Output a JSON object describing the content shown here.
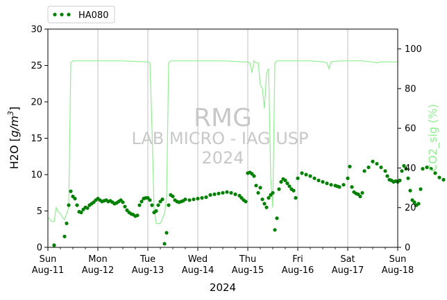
{
  "chart_data": {
    "type": "line",
    "title": "",
    "xlabel": "2024",
    "ylabel": "H2O [g/m³]",
    "ylabel_parts": [
      "H2O [",
      "g/m",
      "3",
      "]"
    ],
    "y2label": "CO2_sig (%)",
    "xlim": [
      "2024-08-11",
      "2024-08-18"
    ],
    "ylim": [
      0,
      30
    ],
    "y2lim": [
      0,
      110
    ],
    "yticks": [
      0,
      5,
      10,
      15,
      20,
      25,
      30
    ],
    "y2ticks": [
      0,
      20,
      40,
      60,
      80,
      100
    ],
    "xticks": [
      {
        "day": "Sun",
        "date": "Aug-11"
      },
      {
        "day": "Mon",
        "date": "Aug-12"
      },
      {
        "day": "Tue",
        "date": "Aug-13"
      },
      {
        "day": "Wed",
        "date": "Aug-14"
      },
      {
        "day": "Thu",
        "date": "Aug-15"
      },
      {
        "day": "Fri",
        "date": "Aug-16"
      },
      {
        "day": "Sat",
        "date": "Aug-17"
      },
      {
        "day": "Sun",
        "date": "Aug-18"
      }
    ],
    "grid": "vertical",
    "legend": {
      "placement": "top-left",
      "entries": [
        "HA080"
      ]
    },
    "watermark": [
      "RMG",
      "LAB MICRO - IAG USP",
      "2024"
    ],
    "colors": {
      "h2o": "#008000",
      "co2": "#90ee90",
      "grid": "#b0b0b0",
      "watermark": "#c8c8c8"
    },
    "series": [
      {
        "name": "HA080",
        "axis": "left",
        "style": "dots",
        "x": [
          "2024-08-11 03:00",
          "2024-08-11 08:00",
          "2024-08-11 09:00",
          "2024-08-11 10:00",
          "2024-08-11 11:00",
          "2024-08-11 12:00",
          "2024-08-11 13:00",
          "2024-08-11 14:00",
          "2024-08-11 15:00",
          "2024-08-11 16:00",
          "2024-08-11 17:00",
          "2024-08-11 18:00",
          "2024-08-11 19:00",
          "2024-08-11 20:00",
          "2024-08-11 21:00",
          "2024-08-11 22:00",
          "2024-08-11 23:00",
          "2024-08-12 00:00",
          "2024-08-12 01:00",
          "2024-08-12 02:00",
          "2024-08-12 03:00",
          "2024-08-12 04:00",
          "2024-08-12 05:00",
          "2024-08-12 06:00",
          "2024-08-12 07:00",
          "2024-08-12 08:00",
          "2024-08-12 09:00",
          "2024-08-12 10:00",
          "2024-08-12 11:00",
          "2024-08-12 12:00",
          "2024-08-12 13:00",
          "2024-08-12 14:00",
          "2024-08-12 15:00",
          "2024-08-12 16:00",
          "2024-08-12 17:00",
          "2024-08-12 18:00",
          "2024-08-12 19:00",
          "2024-08-12 20:00",
          "2024-08-12 21:00",
          "2024-08-12 22:00",
          "2024-08-12 23:00",
          "2024-08-13 00:00",
          "2024-08-13 01:00",
          "2024-08-13 02:00",
          "2024-08-13 03:00",
          "2024-08-13 04:00",
          "2024-08-13 05:00",
          "2024-08-13 06:00",
          "2024-08-13 07:00",
          "2024-08-13 08:00",
          "2024-08-13 09:00",
          "2024-08-13 10:00",
          "2024-08-13 11:00",
          "2024-08-13 12:00",
          "2024-08-13 13:00",
          "2024-08-13 14:00",
          "2024-08-13 15:00",
          "2024-08-13 16:00",
          "2024-08-13 17:00",
          "2024-08-13 18:00",
          "2024-08-13 20:00",
          "2024-08-13 22:00",
          "2024-08-14 00:00",
          "2024-08-14 02:00",
          "2024-08-14 04:00",
          "2024-08-14 06:00",
          "2024-08-14 08:00",
          "2024-08-14 10:00",
          "2024-08-14 12:00",
          "2024-08-14 14:00",
          "2024-08-14 16:00",
          "2024-08-14 18:00",
          "2024-08-14 20:00",
          "2024-08-14 21:00",
          "2024-08-14 22:00",
          "2024-08-14 23:00",
          "2024-08-15 00:00",
          "2024-08-15 01:00",
          "2024-08-15 02:00",
          "2024-08-15 03:00",
          "2024-08-15 04:00",
          "2024-08-15 05:00",
          "2024-08-15 06:00",
          "2024-08-15 07:00",
          "2024-08-15 08:00",
          "2024-08-15 09:00",
          "2024-08-15 10:00",
          "2024-08-15 11:00",
          "2024-08-15 12:00",
          "2024-08-15 13:00",
          "2024-08-15 14:00",
          "2024-08-15 15:00",
          "2024-08-15 16:00",
          "2024-08-15 17:00",
          "2024-08-15 18:00",
          "2024-08-15 19:00",
          "2024-08-15 20:00",
          "2024-08-15 21:00",
          "2024-08-15 22:00",
          "2024-08-15 23:00",
          "2024-08-16 00:00",
          "2024-08-16 02:00",
          "2024-08-16 04:00",
          "2024-08-16 06:00",
          "2024-08-16 08:00",
          "2024-08-16 10:00",
          "2024-08-16 12:00",
          "2024-08-16 14:00",
          "2024-08-16 16:00",
          "2024-08-16 18:00",
          "2024-08-16 19:00",
          "2024-08-16 20:00",
          "2024-08-16 22:00",
          "2024-08-17 00:00",
          "2024-08-17 01:00",
          "2024-08-17 02:00",
          "2024-08-17 03:00",
          "2024-08-17 04:00",
          "2024-08-17 05:00",
          "2024-08-17 06:00",
          "2024-08-17 07:00",
          "2024-08-17 08:00",
          "2024-08-17 10:00",
          "2024-08-17 12:00",
          "2024-08-17 14:00",
          "2024-08-17 16:00",
          "2024-08-17 18:00",
          "2024-08-17 19:00",
          "2024-08-17 20:00",
          "2024-08-17 21:00",
          "2024-08-17 22:00",
          "2024-08-17 23:00",
          "2024-08-18 00:00",
          "2024-08-18 01:00",
          "2024-08-18 02:00",
          "2024-08-18 03:00",
          "2024-08-18 04:00",
          "2024-08-18 05:00",
          "2024-08-18 06:00",
          "2024-08-18 07:00",
          "2024-08-18 08:00",
          "2024-08-18 09:00",
          "2024-08-18 10:00",
          "2024-08-18 11:00",
          "2024-08-18 12:00",
          "2024-08-18 14:00",
          "2024-08-18 16:00",
          "2024-08-18 18:00",
          "2024-08-18 20:00",
          "2024-08-18 22:00"
        ],
        "values": [
          0.3,
          1.5,
          3.3,
          5.8,
          7.7,
          7.0,
          6.7,
          5.8,
          4.9,
          4.8,
          5.2,
          5.5,
          5.4,
          5.8,
          6.0,
          6.2,
          6.5,
          6.7,
          6.5,
          6.3,
          6.4,
          6.5,
          6.3,
          6.4,
          6.2,
          6.0,
          6.1,
          6.3,
          6.5,
          6.2,
          5.6,
          5.1,
          4.8,
          4.6,
          4.5,
          4.3,
          4.4,
          5.8,
          6.3,
          6.7,
          6.8,
          6.8,
          6.5,
          5.8,
          4.8,
          5.0,
          5.8,
          6.3,
          6.6,
          0.5,
          2.0,
          5.8,
          7.2,
          7.0,
          6.5,
          6.3,
          6.2,
          6.3,
          6.4,
          6.6,
          6.5,
          6.6,
          6.7,
          6.8,
          6.9,
          7.2,
          7.3,
          7.4,
          7.5,
          7.6,
          7.5,
          7.3,
          7.1,
          6.8,
          6.5,
          6.3,
          10.2,
          10.3,
          10.1,
          9.8,
          8.5,
          7.5,
          8.2,
          6.6,
          6.0,
          5.5,
          6.8,
          7.2,
          7.5,
          2.4,
          4.0,
          8.0,
          9.0,
          9.4,
          9.2,
          8.8,
          8.4,
          8.0,
          7.8,
          6.8,
          9.5,
          10.2,
          10.0,
          9.8,
          9.5,
          9.2,
          9.0,
          8.8,
          8.6,
          8.5,
          8.4,
          8.3,
          8.6,
          9.5,
          11.1,
          8.3,
          7.6,
          7.4,
          7.3,
          7.0,
          7.5,
          10.5,
          11.0,
          11.8,
          11.5,
          11.0,
          10.5,
          9.8,
          9.3,
          9.2,
          9.0,
          9.1,
          9.0,
          9.2,
          10.5,
          11.2,
          10.8,
          9.5,
          7.8,
          6.5,
          6.2,
          5.8,
          6.0,
          8.0,
          10.8,
          11.0,
          10.8,
          10.2,
          9.6,
          9.3
        ]
      },
      {
        "name": "",
        "axis": "right",
        "style": "line",
        "x": [
          "2024-08-11 00:00",
          "2024-08-11 02:00",
          "2024-08-11 03:00",
          "2024-08-11 04:00",
          "2024-08-11 05:00",
          "2024-08-11 06:00",
          "2024-08-11 07:00",
          "2024-08-11 08:00",
          "2024-08-11 10:00",
          "2024-08-11 11:00",
          "2024-08-11 12:00",
          "2024-08-11 16:00",
          "2024-08-12 00:00",
          "2024-08-12 12:00",
          "2024-08-13 00:00",
          "2024-08-13 01:00",
          "2024-08-13 02:00",
          "2024-08-13 03:00",
          "2024-08-13 04:00",
          "2024-08-13 06:00",
          "2024-08-13 08:00",
          "2024-08-13 09:00",
          "2024-08-13 10:00",
          "2024-08-13 11:00",
          "2024-08-13 14:00",
          "2024-08-14 00:00",
          "2024-08-14 12:00",
          "2024-08-14 22:00",
          "2024-08-15 00:00",
          "2024-08-15 01:00",
          "2024-08-15 02:00",
          "2024-08-15 03:00",
          "2024-08-15 04:00",
          "2024-08-15 05:00",
          "2024-08-15 06:00",
          "2024-08-15 07:00",
          "2024-08-15 08:00",
          "2024-08-15 09:00",
          "2024-08-15 10:00",
          "2024-08-15 11:00",
          "2024-08-15 12:00",
          "2024-08-15 13:00",
          "2024-08-15 14:00",
          "2024-08-15 16:00",
          "2024-08-15 22:00",
          "2024-08-16 06:00",
          "2024-08-16 12:00",
          "2024-08-16 14:00",
          "2024-08-16 15:00",
          "2024-08-16 16:00",
          "2024-08-16 20:00",
          "2024-08-17 06:00",
          "2024-08-17 12:00",
          "2024-08-17 14:00",
          "2024-08-17 16:00",
          "2024-08-18 00:00"
        ],
        "values": [
          15,
          13,
          13,
          20,
          18,
          17,
          15,
          14,
          20,
          93,
          94,
          94,
          94,
          94,
          93.5,
          93,
          60,
          20,
          12,
          12,
          17,
          25,
          93,
          94,
          94,
          94,
          94,
          93.5,
          93.5,
          93,
          88,
          94,
          93,
          93,
          82,
          80,
          70,
          88,
          90,
          35,
          20,
          93,
          94,
          94,
          94,
          94,
          93.5,
          93,
          90,
          93.5,
          94,
          94,
          93.5,
          93,
          93.5,
          93.5
        ]
      }
    ]
  }
}
